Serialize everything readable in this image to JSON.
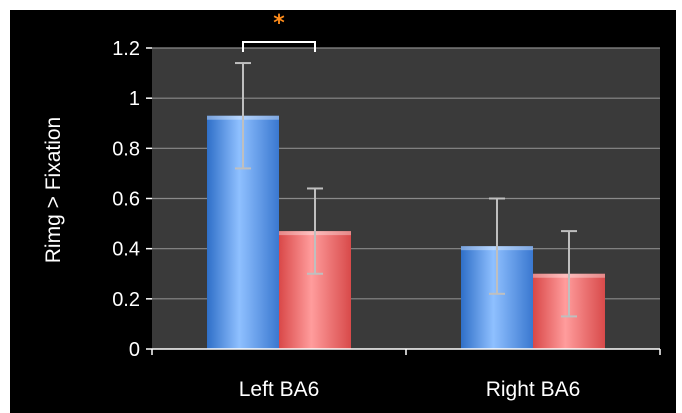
{
  "chart_data": {
    "type": "bar",
    "ylabel": "Rimg > Fixation",
    "categories": [
      "Left BA6",
      "Right BA6"
    ],
    "ylim": [
      0,
      1.2
    ],
    "yticks": [
      "0",
      "0.2",
      "0.4",
      "0.6",
      "0.8",
      "1",
      "1.2"
    ],
    "grid": true,
    "series": [
      {
        "color": "#4a90e2",
        "values": [
          0.93,
          0.41
        ],
        "err_low": [
          0.72,
          0.22
        ],
        "err_high": [
          1.14,
          0.6
        ]
      },
      {
        "color": "#e85a5a",
        "values": [
          0.47,
          0.3
        ],
        "err_low": [
          0.3,
          0.13
        ],
        "err_high": [
          0.64,
          0.47
        ]
      }
    ],
    "significance": {
      "category": "Left BA6",
      "marker": "*",
      "color": "#ff8c1a"
    }
  }
}
